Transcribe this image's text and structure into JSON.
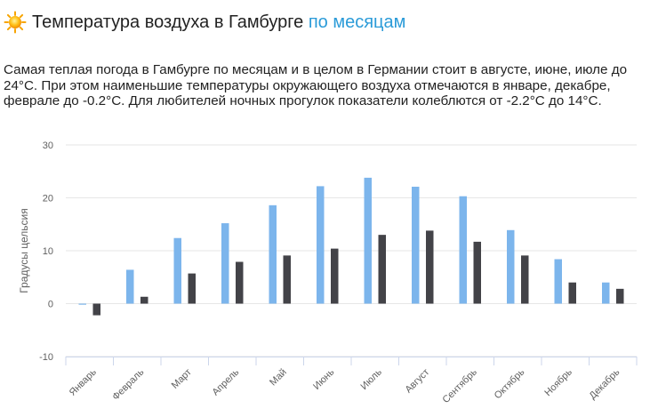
{
  "header": {
    "title_main": "Температура воздуха в Гамбурге",
    "title_accent": "по месяцам",
    "icon": "sun-icon"
  },
  "description": "Самая теплая погода в Гамбурге по месяцам и в целом в Германии стоит в августе, июне, июле до 24°C. При этом наименьшие температуры окружающего воздуха отмечаются в январе, декабре, феврале до -0.2°C. Для любителей ночных прогулок показатели колеблются от -2.2°C до 14°C.",
  "colors": {
    "accent": "#2b9bd8",
    "series_day": "#7cb5ec",
    "series_night": "#434348",
    "grid": "#e6e6e6",
    "axis_text": "#606060"
  },
  "chart_data": {
    "type": "bar",
    "ylabel": "Градусы цельсия",
    "ylim": [
      -10,
      30
    ],
    "yticks": [
      -10,
      0,
      10,
      20,
      30
    ],
    "categories": [
      "Январь",
      "Февраль",
      "Март",
      "Апрель",
      "Май",
      "Июнь",
      "Июль",
      "Август",
      "Сентябрь",
      "Октябрь",
      "Ноябрь",
      "Декабрь"
    ],
    "series": [
      {
        "values": [
          -0.2,
          6.4,
          12.4,
          15.2,
          18.6,
          22.2,
          23.8,
          22.1,
          20.3,
          13.9,
          8.4,
          4.0
        ]
      },
      {
        "values": [
          -2.2,
          1.3,
          5.7,
          7.9,
          9.1,
          10.4,
          13.0,
          13.8,
          11.7,
          9.1,
          4.0,
          2.8
        ]
      }
    ],
    "grid": true,
    "legend": "none"
  }
}
